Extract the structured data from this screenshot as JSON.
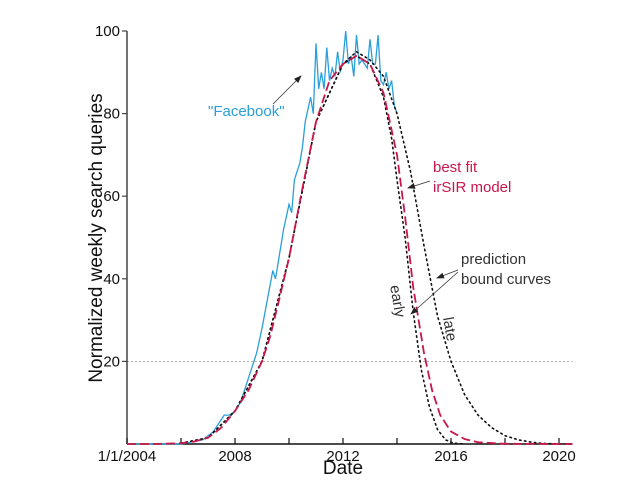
{
  "chart_data": {
    "type": "line",
    "title": "",
    "xlabel": "Date",
    "ylabel": "Normalized weekly search queries",
    "xlim": [
      2004,
      2020.5
    ],
    "ylim": [
      0,
      100
    ],
    "x_ticks": [
      2004,
      2006,
      2008,
      2010,
      2012,
      2014,
      2016,
      2018,
      2020
    ],
    "x_tick_labels": [
      {
        "value": 2004,
        "label": "1/1/2004"
      },
      {
        "value": 2008,
        "label": "2008"
      },
      {
        "value": 2012,
        "label": "2012"
      },
      {
        "value": 2016,
        "label": "2016"
      },
      {
        "value": 2020,
        "label": "2020"
      }
    ],
    "y_ticks": [
      20,
      40,
      60,
      80,
      100
    ],
    "y_tick_labels": [
      "20",
      "40",
      "60",
      "80",
      "100"
    ],
    "reference_line": {
      "y": 20,
      "style": "dotted-gray"
    },
    "grid": false,
    "series": [
      {
        "name": "\"Facebook\"",
        "role": "data",
        "color": "#2a9fd8",
        "style": "solid",
        "x": [
          2004,
          2006,
          2006.8,
          2007.2,
          2007.4,
          2007.6,
          2007.8,
          2008.0,
          2008.2,
          2008.4,
          2008.6,
          2008.8,
          2009.0,
          2009.2,
          2009.4,
          2009.5,
          2009.7,
          2009.8,
          2010.0,
          2010.1,
          2010.2,
          2010.4,
          2010.5,
          2010.6,
          2010.8,
          2010.9,
          2011.0,
          2011.1,
          2011.2,
          2011.3,
          2011.4,
          2011.5,
          2011.6,
          2011.7,
          2011.8,
          2011.9,
          2012.0,
          2012.1,
          2012.2,
          2012.3,
          2012.4,
          2012.5,
          2012.6,
          2012.7,
          2012.8,
          2012.9,
          2013.0,
          2013.1,
          2013.2,
          2013.3,
          2013.4,
          2013.5,
          2013.6,
          2013.7,
          2013.8,
          2013.9,
          2014.0
        ],
        "y": [
          0,
          0,
          1,
          3,
          5,
          7,
          7,
          8,
          10,
          14,
          18,
          22,
          28,
          35,
          42,
          40,
          48,
          52,
          58,
          56,
          64,
          68,
          72,
          78,
          84,
          80,
          97,
          86,
          90,
          86,
          96,
          88,
          91,
          89,
          95,
          90,
          93,
          100,
          92,
          94,
          89,
          99,
          92,
          93,
          92,
          91,
          98,
          92,
          92,
          99,
          88,
          87,
          90,
          86,
          88,
          82,
          80
        ]
      },
      {
        "name": "best fit irSIR model",
        "role": "model",
        "color": "#c8174a",
        "style": "dashed",
        "x": [
          2004,
          2005,
          2006,
          2006.5,
          2007,
          2007.5,
          2008,
          2008.5,
          2009,
          2009.3,
          2009.6,
          2010,
          2010.5,
          2011,
          2011.5,
          2012,
          2012.5,
          2013,
          2013.5,
          2014,
          2014.3,
          2014.6,
          2015,
          2015.3,
          2015.6,
          2016,
          2016.5,
          2017,
          2018,
          2020.5
        ],
        "y": [
          0,
          0,
          0.2,
          0.6,
          1.5,
          4,
          8,
          13,
          20,
          26,
          34,
          45,
          62,
          78,
          88,
          92,
          94,
          92,
          85,
          70,
          55,
          38,
          22,
          13,
          7,
          3,
          1.2,
          0.4,
          0.05,
          0
        ]
      },
      {
        "name": "early",
        "role": "prediction-bound",
        "color": "#111111",
        "style": "dotted",
        "x": [
          2006,
          2007,
          2008,
          2009,
          2010,
          2011,
          2012,
          2012.5,
          2013,
          2013.5,
          2013.8,
          2014,
          2014.3,
          2014.6,
          2014.9,
          2015.2,
          2015.5,
          2015.8,
          2016.1,
          2016.5
        ],
        "y": [
          0.2,
          1.5,
          8,
          20,
          45,
          78,
          92,
          94,
          92,
          84,
          74,
          64,
          50,
          32,
          18,
          9,
          3.5,
          1,
          0.2,
          0
        ]
      },
      {
        "name": "late",
        "role": "prediction-bound",
        "color": "#111111",
        "style": "dotted",
        "x": [
          2006,
          2007,
          2008,
          2009,
          2010,
          2011,
          2012,
          2012.5,
          2013,
          2013.5,
          2014,
          2014.5,
          2015,
          2015.5,
          2016,
          2016.5,
          2017,
          2017.5,
          2018,
          2018.5,
          2019,
          2019.5,
          2020.5
        ],
        "y": [
          0.2,
          1.5,
          8,
          20,
          45,
          78,
          92,
          95,
          93,
          89,
          80,
          66,
          48,
          31,
          20,
          12,
          7,
          4,
          2,
          1,
          0.4,
          0.1,
          0
        ]
      }
    ],
    "annotations": [
      {
        "text": "\"Facebook\"",
        "color": "#2a9fd8",
        "points_to": "data curve near 2011, 85"
      },
      {
        "text": "best fit",
        "color": "#c8174a"
      },
      {
        "text": "irSIR model",
        "color": "#c8174a",
        "points_to": "model curve near 2014.4, 62"
      },
      {
        "text": "prediction",
        "color": "#333333"
      },
      {
        "text": "bound curves",
        "color": "#333333",
        "points_to": "early and late curves"
      },
      {
        "text": "early",
        "color": "#333333",
        "rotation": "vertical"
      },
      {
        "text": "late",
        "color": "#333333",
        "rotation": "vertical"
      }
    ]
  }
}
